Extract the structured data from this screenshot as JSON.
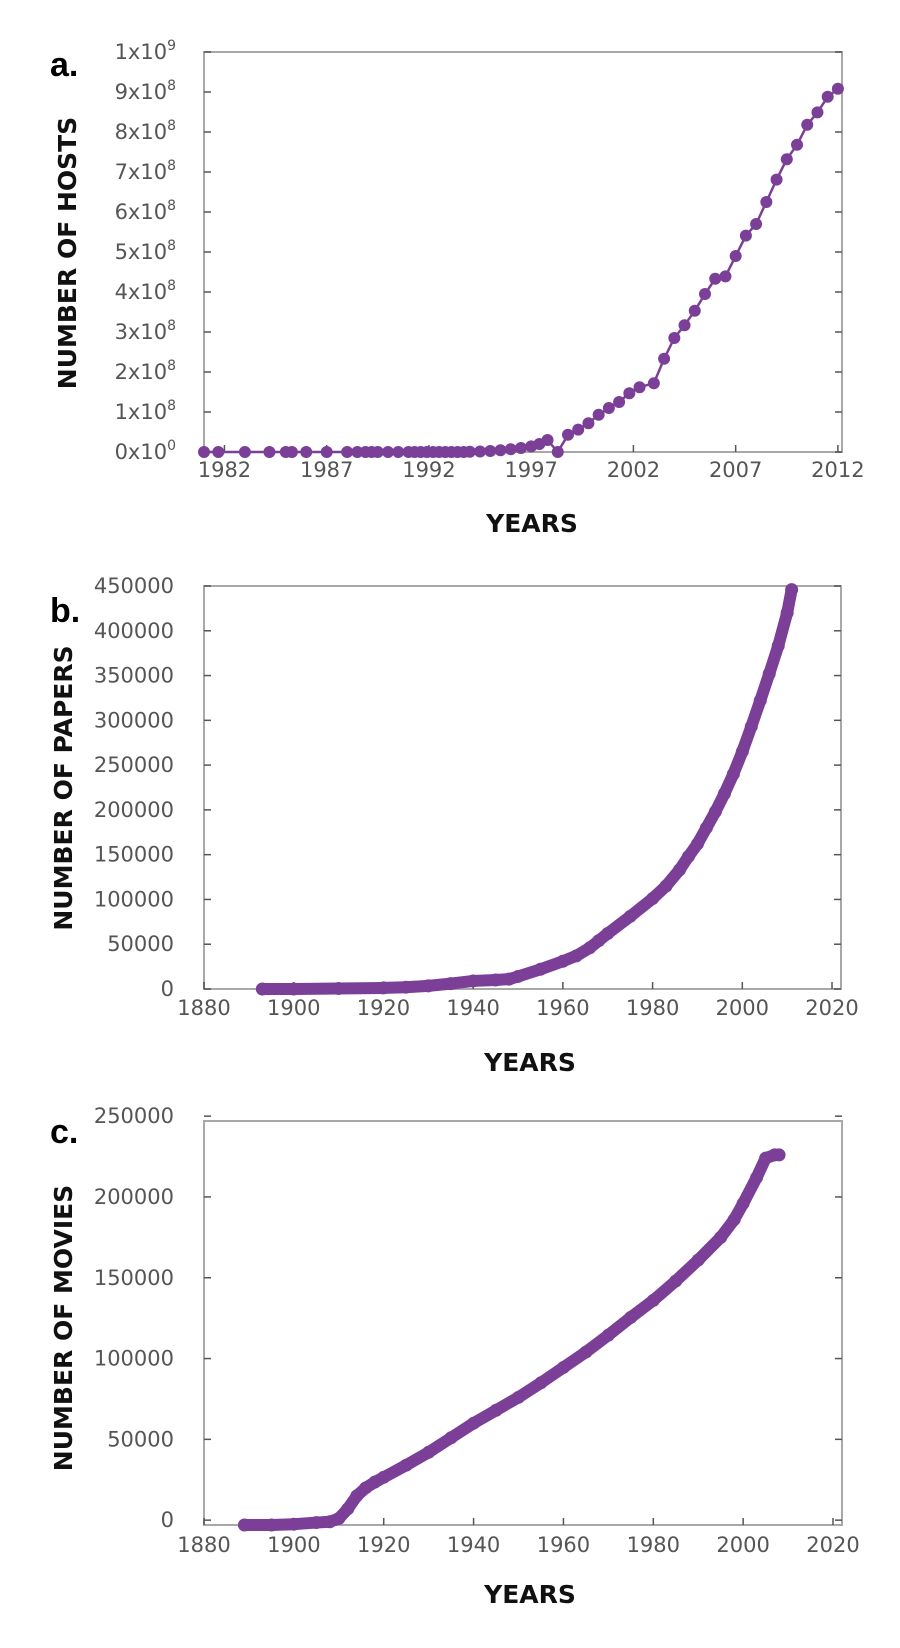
{
  "chart_data": [
    {
      "type": "line",
      "panel_label": "a.",
      "xlabel": "YEARS",
      "ylabel": "NUMBER OF HOSTS",
      "xlim": [
        1981,
        2012.2
      ],
      "ylim": [
        0,
        1000000000
      ],
      "x_ticks": [
        1982,
        1987,
        1992,
        1997,
        2002,
        2007,
        2012
      ],
      "x_tick_labels": [
        "1982",
        "1987",
        "1992",
        "1997",
        "2002",
        "2007",
        "2012"
      ],
      "y_ticks": [
        0,
        100000000,
        200000000,
        300000000,
        400000000,
        500000000,
        600000000,
        700000000,
        800000000,
        900000000,
        1000000000
      ],
      "y_tick_labels": [
        [
          "0",
          "0"
        ],
        [
          "1",
          "8"
        ],
        [
          "2",
          "8"
        ],
        [
          "3",
          "8"
        ],
        [
          "4",
          "8"
        ],
        [
          "5",
          "8"
        ],
        [
          "6",
          "8"
        ],
        [
          "7",
          "8"
        ],
        [
          "8",
          "8"
        ],
        [
          "9",
          "8"
        ],
        [
          "1",
          "9"
        ]
      ],
      "color": "#7b3f98",
      "markers": true,
      "grid": false,
      "series": [
        {
          "x": [
            1981.0,
            1981.7,
            1983.0,
            1984.2,
            1985.0,
            1985.3,
            1986.0,
            1987.0,
            1988.0,
            1988.5,
            1988.9,
            1989.2,
            1989.5,
            1990.0,
            1990.5,
            1991.0,
            1991.3,
            1991.6,
            1991.9,
            1992.2,
            1992.5,
            1992.8,
            1993.1,
            1993.4,
            1993.7,
            1994.0,
            1994.5,
            1995.0,
            1995.5,
            1996.0,
            1996.5,
            1997.0,
            1997.4,
            1997.8,
            1998.3,
            1998.8,
            1999.3,
            1999.8,
            2000.3,
            2000.8,
            2001.3,
            2001.8,
            2002.3,
            2003.0,
            2003.5,
            2004.0,
            2004.5,
            2005.0,
            2005.5,
            2006.0,
            2006.5,
            2007.0,
            2007.5,
            2008.0,
            2008.5,
            2009.0,
            2009.5,
            2010.0,
            2010.5,
            2011.0,
            2011.5,
            2012.0
          ],
          "y": [
            0,
            0,
            0,
            0,
            0,
            0,
            0,
            0,
            0,
            0,
            0,
            0,
            0,
            0,
            0,
            0,
            0,
            0,
            0,
            0,
            0,
            0,
            0,
            0,
            0,
            500000,
            1300000,
            2500000,
            4500000,
            7000000,
            10000000,
            14000000,
            20000000,
            30000000,
            0,
            43000000,
            56000000,
            72000000,
            93000000,
            110000000,
            125000000,
            147000000,
            162000000,
            172000000,
            233000000,
            285000000,
            317000000,
            353000000,
            395000000,
            433000000,
            439000000,
            490000000,
            541000000,
            570000000,
            625000000,
            681000000,
            732000000,
            768000000,
            818000000,
            849000000,
            888000000,
            908000000
          ]
        }
      ]
    },
    {
      "type": "scatter",
      "panel_label": "b.",
      "xlabel": "YEARS",
      "ylabel": "NUMBER OF PAPERS",
      "xlim": [
        1880,
        2022
      ],
      "ylim": [
        0,
        450000
      ],
      "x_ticks": [
        1880,
        1900,
        1920,
        1940,
        1960,
        1980,
        2000,
        2020
      ],
      "x_tick_labels": [
        "1880",
        "1900",
        "1920",
        "1940",
        "1960",
        "1980",
        "2000",
        "2020"
      ],
      "y_ticks": [
        0,
        50000,
        100000,
        150000,
        200000,
        250000,
        300000,
        350000,
        400000,
        450000
      ],
      "y_tick_labels": [
        "0",
        "50000",
        "100000",
        "150000",
        "200000",
        "250000",
        "300000",
        "350000",
        "400000",
        "450000"
      ],
      "color": "#7b3f98",
      "markers": true,
      "grid": false,
      "series": [
        {
          "x": [
            1893,
            1900,
            1910,
            1920,
            1925,
            1930,
            1935,
            1940,
            1945,
            1948,
            1950,
            1955,
            1960,
            1963,
            1966,
            1968,
            1970,
            1975,
            1980,
            1983,
            1986,
            1988,
            1990,
            1992,
            1994,
            1996,
            1998,
            2000,
            2002,
            2004,
            2006,
            2008,
            2010,
            2011
          ],
          "y": [
            0,
            0,
            500,
            1200,
            2000,
            3500,
            6000,
            9000,
            10000,
            11000,
            14000,
            22000,
            31000,
            37000,
            46000,
            54000,
            62000,
            81000,
            101000,
            115000,
            133000,
            148000,
            162000,
            180000,
            198000,
            218000,
            240000,
            265000,
            293000,
            322000,
            352000,
            383000,
            420000,
            446000
          ]
        }
      ]
    },
    {
      "type": "scatter",
      "panel_label": "c.",
      "xlabel": "YEARS",
      "ylabel": "NUMBER OF MOVIES",
      "xlim": [
        1880,
        2022
      ],
      "ylim": [
        -3000,
        247000
      ],
      "x_ticks": [
        1880,
        1900,
        1920,
        1940,
        1960,
        1980,
        2000,
        2020
      ],
      "x_tick_labels": [
        "1880",
        "1900",
        "1920",
        "1940",
        "1960",
        "1980",
        "2000",
        "2020"
      ],
      "y_ticks": [
        0,
        50000,
        100000,
        150000,
        200000,
        250000
      ],
      "y_tick_labels": [
        "0",
        "50000",
        "100000",
        "150000",
        "200000",
        "250000"
      ],
      "color": "#7b3f98",
      "markers": true,
      "grid": false,
      "series": [
        {
          "x": [
            1889,
            1895,
            1900,
            1905,
            1908,
            1910,
            1912,
            1914,
            1916,
            1918,
            1920,
            1925,
            1930,
            1935,
            1940,
            1945,
            1950,
            1955,
            1960,
            1965,
            1970,
            1975,
            1980,
            1985,
            1990,
            1995,
            1998,
            2000,
            2003,
            2005,
            2007,
            2008
          ],
          "y": [
            -3000,
            -3000,
            -2500,
            -1500,
            -1000,
            1000,
            7000,
            15000,
            20000,
            23500,
            26500,
            34000,
            42000,
            51000,
            60000,
            68000,
            76000,
            85000,
            94500,
            104000,
            114500,
            125500,
            136000,
            148000,
            161000,
            175000,
            186000,
            196000,
            212000,
            224000,
            226000,
            226000
          ]
        }
      ]
    }
  ]
}
